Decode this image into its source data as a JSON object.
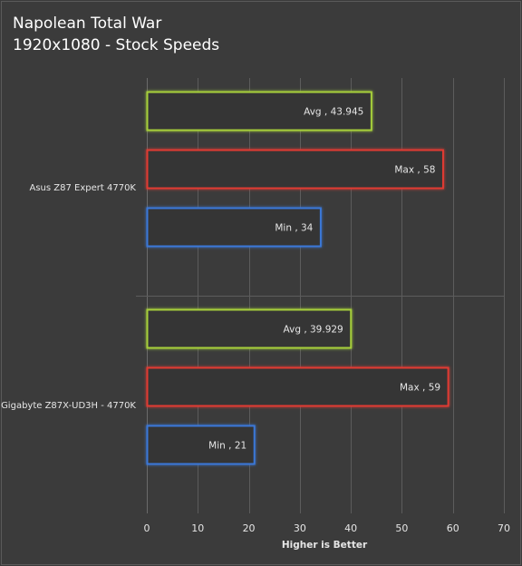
{
  "chart_data": {
    "type": "bar",
    "orientation": "horizontal",
    "title": "Napolean Total War",
    "subtitle": "1920x1080 - Stock Speeds",
    "xlabel": "Higher is Better",
    "ylabel": "",
    "xlim": [
      0,
      70
    ],
    "xticks": [
      0,
      10,
      20,
      30,
      40,
      50,
      60,
      70
    ],
    "grid": true,
    "legend": "none",
    "categories": [
      "Asus Z87 Expert 4770K",
      "Gigabyte Z87X-UD3H - 4770K"
    ],
    "series": [
      {
        "name": "Avg",
        "color": "#a6cf3a",
        "values": [
          43.945,
          39.929
        ]
      },
      {
        "name": "Max",
        "color": "#e03a32",
        "values": [
          58,
          59
        ]
      },
      {
        "name": "Min",
        "color": "#3a78d8",
        "values": [
          34,
          21
        ]
      }
    ]
  }
}
